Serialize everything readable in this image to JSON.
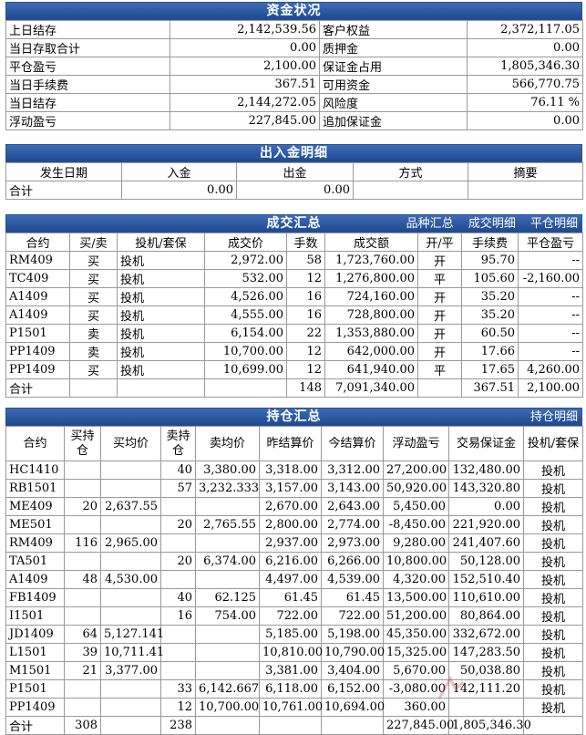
{
  "funds": {
    "title": "资金状况",
    "rows": [
      [
        "上日结存",
        "2,142,539.56",
        "客户权益",
        "2,372,117.05"
      ],
      [
        "当日存取合计",
        "0.00",
        "质押金",
        "0.00"
      ],
      [
        "平仓盈亏",
        "2,100.00",
        "保证金占用",
        "1,805,346.30"
      ],
      [
        "当日手续费",
        "367.51",
        "可用资金",
        "566,770.75"
      ],
      [
        "当日结存",
        "2,144,272.05",
        "风险度",
        "76.11 %"
      ],
      [
        "浮动盈亏",
        "227,845.00",
        "追加保证金",
        "0.00"
      ]
    ]
  },
  "inout": {
    "title": "出入金明细",
    "headers": [
      "发生日期",
      "入金",
      "出金",
      "方式",
      "摘要"
    ],
    "total": [
      "合计",
      "0.00",
      "0.00",
      "",
      ""
    ]
  },
  "trades": {
    "title": "成交汇总",
    "links": [
      "品种汇总",
      "成交明细",
      "平仓明细"
    ],
    "headers": [
      "合约",
      "买/卖",
      "投机/套保",
      "成交价",
      "手数",
      "成交额",
      "开/平",
      "手续费",
      "平仓盈亏"
    ],
    "rows": [
      [
        "RM409",
        "买",
        "投机",
        "2,972.00",
        "58",
        "1,723,760.00",
        "开",
        "95.70",
        "--"
      ],
      [
        "TC409",
        "买",
        "投机",
        "532.00",
        "12",
        "1,276,800.00",
        "平",
        "105.60",
        "-2,160.00"
      ],
      [
        "A1409",
        "买",
        "投机",
        "4,526.00",
        "16",
        "724,160.00",
        "开",
        "35.20",
        "--"
      ],
      [
        "A1409",
        "买",
        "投机",
        "4,555.00",
        "16",
        "728,800.00",
        "开",
        "35.20",
        "--"
      ],
      [
        "P1501",
        "卖",
        "投机",
        "6,154.00",
        "22",
        "1,353,880.00",
        "开",
        "60.50",
        "--"
      ],
      [
        "PP1409",
        "卖",
        "投机",
        "10,700.00",
        "12",
        "642,000.00",
        "开",
        "17.66",
        "--"
      ],
      [
        "PP1409",
        "买",
        "投机",
        "10,699.00",
        "12",
        "641,940.00",
        "平",
        "17.65",
        "4,260.00"
      ]
    ],
    "total": [
      "合计",
      "",
      "",
      "",
      "148",
      "7,091,340.00",
      "",
      "367.51",
      "2,100.00"
    ]
  },
  "positions": {
    "title": "持仓汇总",
    "links": [
      "持仓明细"
    ],
    "headers": [
      "合约",
      "买持仓",
      "买均价",
      "卖持仓",
      "卖均价",
      "昨结算价",
      "今结算价",
      "浮动盈亏",
      "交易保证金",
      "投机/套保"
    ],
    "rows": [
      [
        "HC1410",
        "",
        "",
        "40",
        "3,380.00",
        "3,318.00",
        "3,312.00",
        "27,200.00",
        "132,480.00",
        "投机"
      ],
      [
        "RB1501",
        "",
        "",
        "57",
        "3,232.333",
        "3,157.00",
        "3,143.00",
        "50,920.00",
        "143,320.80",
        "投机"
      ],
      [
        "ME409",
        "20",
        "2,637.55",
        "",
        "",
        "2,670.00",
        "2,643.00",
        "5,450.00",
        "0.00",
        "投机"
      ],
      [
        "ME501",
        "",
        "",
        "20",
        "2,765.55",
        "2,800.00",
        "2,774.00",
        "-8,450.00",
        "221,920.00",
        "投机"
      ],
      [
        "RM409",
        "116",
        "2,965.00",
        "",
        "",
        "2,937.00",
        "2,973.00",
        "9,280.00",
        "241,407.60",
        "投机"
      ],
      [
        "TA501",
        "",
        "",
        "20",
        "6,374.00",
        "6,216.00",
        "6,266.00",
        "10,800.00",
        "50,128.00",
        "投机"
      ],
      [
        "A1409",
        "48",
        "4,530.00",
        "",
        "",
        "4,497.00",
        "4,539.00",
        "4,320.00",
        "152,510.40",
        "投机"
      ],
      [
        "FB1409",
        "",
        "",
        "40",
        "62.125",
        "61.45",
        "61.45",
        "13,500.00",
        "110,610.00",
        "投机"
      ],
      [
        "I1501",
        "",
        "",
        "16",
        "754.00",
        "722.00",
        "722.00",
        "51,200.00",
        "80,864.00",
        "投机"
      ],
      [
        "JD1409",
        "64",
        "5,127.141",
        "",
        "",
        "5,185.00",
        "5,198.00",
        "45,350.00",
        "332,672.00",
        "投机"
      ],
      [
        "L1501",
        "39",
        "10,711.41",
        "",
        "",
        "10,810.00",
        "10,790.00",
        "15,325.00",
        "147,283.50",
        "投机"
      ],
      [
        "M1501",
        "21",
        "3,377.00",
        "",
        "",
        "3,381.00",
        "3,404.00",
        "5,670.00",
        "50,038.80",
        "投机"
      ],
      [
        "P1501",
        "",
        "",
        "33",
        "6,142.667",
        "6,118.00",
        "6,152.00",
        "-3,080.00",
        "142,111.20",
        "投机"
      ],
      [
        "PP1409",
        "",
        "",
        "12",
        "10,700.00",
        "10,761.00",
        "10,694.00",
        "360.00",
        "",
        "投机"
      ]
    ],
    "total": [
      "合计",
      "308",
      "",
      "238",
      "",
      "",
      "",
      "227,845.00",
      "1,805,346.30",
      ""
    ]
  }
}
